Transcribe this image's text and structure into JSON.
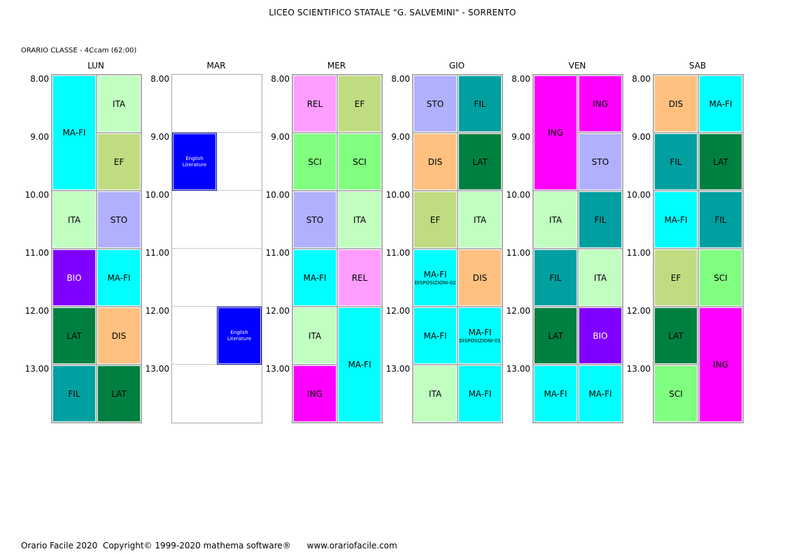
{
  "header": {
    "school_title": "LICEO SCIENTIFICO STATALE \"G. SALVEMINI\" - SORRENTO",
    "class_label": "ORARIO CLASSE  -  4Ccam (62:00)"
  },
  "hours": [
    "8.00",
    "9.00",
    "10.00",
    "11.00",
    "12.00",
    "13.00"
  ],
  "colors": {
    "MA-FI": "#00ffff",
    "ITA": "#c0ffc0",
    "EF": "#c0dc80",
    "STO": "#b0b0ff",
    "BIO": "#8000ff",
    "LAT": "#008040",
    "DIS": "#ffc080",
    "FIL": "#00a0a0",
    "REL": "#ff9cff",
    "SCI": "#80ff80",
    "ING": "#ff00ff",
    "ENG": "#0000ff"
  },
  "light_text": [
    "BIO",
    "ENG"
  ],
  "days": [
    {
      "name": "LUN",
      "lessons": [
        {
          "subject": "MA-FI",
          "key": "MA-FI",
          "col": 0,
          "start": 0,
          "span": 2
        },
        {
          "subject": "ITA",
          "key": "ITA",
          "col": 1,
          "start": 0,
          "span": 1
        },
        {
          "subject": "EF",
          "key": "EF",
          "col": 1,
          "start": 1,
          "span": 1
        },
        {
          "subject": "ITA",
          "key": "ITA",
          "col": 0,
          "start": 2,
          "span": 1
        },
        {
          "subject": "STO",
          "key": "STO",
          "col": 1,
          "start": 2,
          "span": 1
        },
        {
          "subject": "BIO",
          "key": "BIO",
          "col": 0,
          "start": 3,
          "span": 1
        },
        {
          "subject": "MA-FI",
          "key": "MA-FI",
          "col": 1,
          "start": 3,
          "span": 1
        },
        {
          "subject": "LAT",
          "key": "LAT",
          "col": 0,
          "start": 4,
          "span": 1
        },
        {
          "subject": "DIS",
          "key": "DIS",
          "col": 1,
          "start": 4,
          "span": 1
        },
        {
          "subject": "FIL",
          "key": "FIL",
          "col": 0,
          "start": 5,
          "span": 1
        },
        {
          "subject": "LAT",
          "key": "LAT",
          "col": 1,
          "start": 5,
          "span": 1
        }
      ]
    },
    {
      "name": "MAR",
      "lessons": [
        {
          "subject": "English Literature",
          "key": "ENG",
          "col": 0,
          "start": 1,
          "span": 1,
          "small": true
        },
        {
          "subject": "English Literature",
          "key": "ENG",
          "col": 1,
          "start": 4,
          "span": 1,
          "small": true
        }
      ]
    },
    {
      "name": "MER",
      "lessons": [
        {
          "subject": "REL",
          "key": "REL",
          "col": 0,
          "start": 0,
          "span": 1
        },
        {
          "subject": "EF",
          "key": "EF",
          "col": 1,
          "start": 0,
          "span": 1
        },
        {
          "subject": "SCI",
          "key": "SCI",
          "col": 0,
          "start": 1,
          "span": 1
        },
        {
          "subject": "SCI",
          "key": "SCI",
          "col": 1,
          "start": 1,
          "span": 1
        },
        {
          "subject": "STO",
          "key": "STO",
          "col": 0,
          "start": 2,
          "span": 1
        },
        {
          "subject": "ITA",
          "key": "ITA",
          "col": 1,
          "start": 2,
          "span": 1
        },
        {
          "subject": "MA-FI",
          "key": "MA-FI",
          "col": 0,
          "start": 3,
          "span": 1
        },
        {
          "subject": "REL",
          "key": "REL",
          "col": 1,
          "start": 3,
          "span": 1
        },
        {
          "subject": "ITA",
          "key": "ITA",
          "col": 0,
          "start": 4,
          "span": 1
        },
        {
          "subject": "MA-FI",
          "key": "MA-FI",
          "col": 1,
          "start": 4,
          "span": 2
        },
        {
          "subject": "ING",
          "key": "ING",
          "col": 0,
          "start": 5,
          "span": 1
        }
      ]
    },
    {
      "name": "GIO",
      "lessons": [
        {
          "subject": "STO",
          "key": "STO",
          "col": 0,
          "start": 0,
          "span": 1
        },
        {
          "subject": "FIL",
          "key": "FIL",
          "col": 1,
          "start": 0,
          "span": 1
        },
        {
          "subject": "DIS",
          "key": "DIS",
          "col": 0,
          "start": 1,
          "span": 1
        },
        {
          "subject": "LAT",
          "key": "LAT",
          "col": 1,
          "start": 1,
          "span": 1
        },
        {
          "subject": "EF",
          "key": "EF",
          "col": 0,
          "start": 2,
          "span": 1
        },
        {
          "subject": "ITA",
          "key": "ITA",
          "col": 1,
          "start": 2,
          "span": 1
        },
        {
          "subject": "MA-FI",
          "key": "MA-FI",
          "col": 0,
          "start": 3,
          "span": 1,
          "note": "DISPOSIZIONI-02"
        },
        {
          "subject": "DIS",
          "key": "DIS",
          "col": 1,
          "start": 3,
          "span": 1
        },
        {
          "subject": "MA-FI",
          "key": "MA-FI",
          "col": 0,
          "start": 4,
          "span": 1
        },
        {
          "subject": "MA-FI",
          "key": "MA-FI",
          "col": 1,
          "start": 4,
          "span": 1,
          "note": "DISPOSIZIONI-01"
        },
        {
          "subject": "ITA",
          "key": "ITA",
          "col": 0,
          "start": 5,
          "span": 1
        },
        {
          "subject": "MA-FI",
          "key": "MA-FI",
          "col": 1,
          "start": 5,
          "span": 1
        }
      ]
    },
    {
      "name": "VEN",
      "lessons": [
        {
          "subject": "ING",
          "key": "ING",
          "col": 0,
          "start": 0,
          "span": 2
        },
        {
          "subject": "ING",
          "key": "ING",
          "col": 1,
          "start": 0,
          "span": 1
        },
        {
          "subject": "STO",
          "key": "STO",
          "col": 1,
          "start": 1,
          "span": 1
        },
        {
          "subject": "ITA",
          "key": "ITA",
          "col": 0,
          "start": 2,
          "span": 1
        },
        {
          "subject": "FIL",
          "key": "FIL",
          "col": 1,
          "start": 2,
          "span": 1
        },
        {
          "subject": "FIL",
          "key": "FIL",
          "col": 0,
          "start": 3,
          "span": 1
        },
        {
          "subject": "ITA",
          "key": "ITA",
          "col": 1,
          "start": 3,
          "span": 1
        },
        {
          "subject": "LAT",
          "key": "LAT",
          "col": 0,
          "start": 4,
          "span": 1
        },
        {
          "subject": "BIO",
          "key": "BIO",
          "col": 1,
          "start": 4,
          "span": 1
        },
        {
          "subject": "MA-FI",
          "key": "MA-FI",
          "col": 0,
          "start": 5,
          "span": 1
        },
        {
          "subject": "MA-FI",
          "key": "MA-FI",
          "col": 1,
          "start": 5,
          "span": 1
        }
      ]
    },
    {
      "name": "SAB",
      "lessons": [
        {
          "subject": "DIS",
          "key": "DIS",
          "col": 0,
          "start": 0,
          "span": 1
        },
        {
          "subject": "MA-FI",
          "key": "MA-FI",
          "col": 1,
          "start": 0,
          "span": 1
        },
        {
          "subject": "FIL",
          "key": "FIL",
          "col": 0,
          "start": 1,
          "span": 1
        },
        {
          "subject": "LAT",
          "key": "LAT",
          "col": 1,
          "start": 1,
          "span": 1
        },
        {
          "subject": "MA-FI",
          "key": "MA-FI",
          "col": 0,
          "start": 2,
          "span": 1
        },
        {
          "subject": "FIL",
          "key": "FIL",
          "col": 1,
          "start": 2,
          "span": 1
        },
        {
          "subject": "EF",
          "key": "EF",
          "col": 0,
          "start": 3,
          "span": 1
        },
        {
          "subject": "SCI",
          "key": "SCI",
          "col": 1,
          "start": 3,
          "span": 1
        },
        {
          "subject": "LAT",
          "key": "LAT",
          "col": 0,
          "start": 4,
          "span": 1
        },
        {
          "subject": "ING",
          "key": "ING",
          "col": 1,
          "start": 4,
          "span": 2
        },
        {
          "subject": "SCI",
          "key": "SCI",
          "col": 0,
          "start": 5,
          "span": 1
        }
      ]
    }
  ],
  "footer": {
    "text": "Orario Facile 2020  Copyright© 1999-2020 mathema software®      www.orariofacile.com"
  }
}
